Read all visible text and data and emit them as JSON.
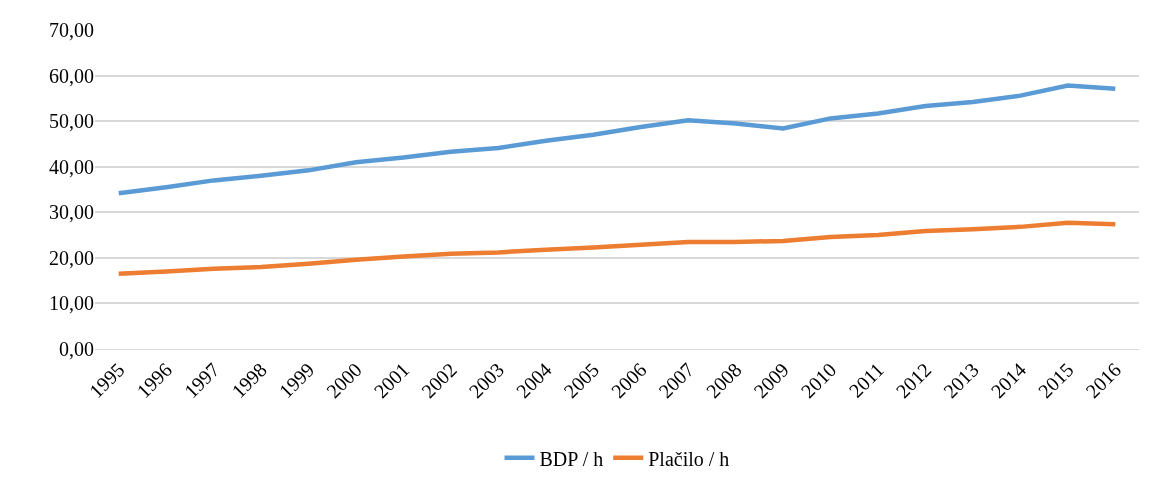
{
  "chart_data": {
    "type": "line",
    "categories": [
      "1995",
      "1996",
      "1997",
      "1998",
      "1999",
      "2000",
      "2001",
      "2002",
      "2003",
      "2004",
      "2005",
      "2006",
      "2007",
      "2008",
      "2009",
      "2010",
      "2011",
      "2012",
      "2013",
      "2014",
      "2015",
      "2016"
    ],
    "series": [
      {
        "name": "BDP / h",
        "color": "#5b9bd5",
        "values": [
          34.2,
          35.5,
          37.0,
          38.0,
          39.2,
          41.0,
          42.0,
          43.3,
          44.1,
          45.7,
          47.0,
          48.7,
          50.2,
          49.5,
          48.4,
          50.6,
          51.7,
          53.3,
          54.2,
          55.6,
          57.8,
          57.1
        ]
      },
      {
        "name": "Plačilo / h",
        "color": "#ed7d31",
        "values": [
          16.5,
          17.0,
          17.6,
          18.0,
          18.7,
          19.6,
          20.3,
          20.9,
          21.2,
          21.8,
          22.3,
          22.9,
          23.5,
          23.5,
          23.7,
          24.6,
          25.0,
          25.9,
          26.3,
          26.8,
          27.7,
          27.4
        ]
      }
    ],
    "ylim": [
      0,
      70
    ],
    "yticks": [
      {
        "value": 0,
        "label": "0,00"
      },
      {
        "value": 10,
        "label": "10,00"
      },
      {
        "value": 20,
        "label": "20,00"
      },
      {
        "value": 30,
        "label": "30,00"
      },
      {
        "value": 40,
        "label": "40,00"
      },
      {
        "value": 50,
        "label": "50,00"
      },
      {
        "value": 60,
        "label": "60,00"
      },
      {
        "value": 70,
        "label": "70,00"
      }
    ],
    "grid": "y",
    "legend": "bottom",
    "marker": "none",
    "line_style": "solid"
  }
}
